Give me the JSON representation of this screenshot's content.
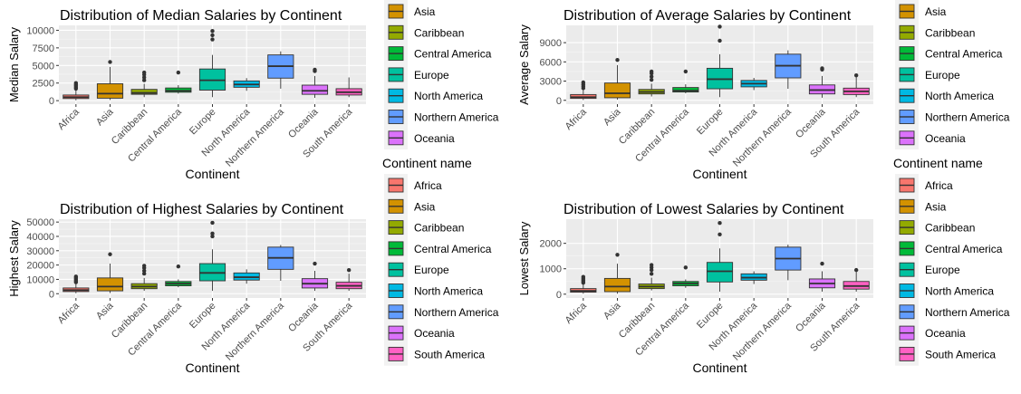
{
  "continents": [
    "Africa",
    "Asia",
    "Caribbean",
    "Central America",
    "Europe",
    "North America",
    "Northern America",
    "Oceania",
    "South America"
  ],
  "colors": {
    "Africa": "#F8766D",
    "Asia": "#D39200",
    "Caribbean": "#93AA00",
    "Central America": "#00BA38",
    "Europe": "#00C19F",
    "North America": "#00B9E3",
    "Northern America": "#619CFF",
    "Oceania": "#DB72FB",
    "South America": "#FF61C3"
  },
  "chart_data": [
    {
      "type": "box",
      "title": "Distribution of Median Salaries by Continent",
      "xlabel": "Continent",
      "ylabel": "Median Salary",
      "ylim": [
        -500,
        10700
      ],
      "yticks": [
        0,
        2500,
        5000,
        7500,
        10000
      ],
      "tick_labels": [
        "0",
        "2500",
        "5000",
        "7500",
        "10000"
      ],
      "legend_title": "",
      "legend_entries": [
        "Asia",
        "Caribbean",
        "Central America",
        "Europe",
        "North America",
        "Northern America",
        "Oceania"
      ],
      "boxes": [
        {
          "category": "Africa",
          "min": 50,
          "q1": 300,
          "median": 500,
          "q3": 800,
          "max": 1500,
          "outliers": [
            1700,
            1900,
            2100,
            2300,
            2500
          ]
        },
        {
          "category": "Asia",
          "min": 100,
          "q1": 350,
          "median": 1000,
          "q3": 2400,
          "max": 4800,
          "outliers": [
            5500
          ]
        },
        {
          "category": "Caribbean",
          "min": 500,
          "q1": 900,
          "median": 1100,
          "q3": 1600,
          "max": 2400,
          "outliers": [
            2900,
            3300,
            3700,
            4000
          ]
        },
        {
          "category": "Central America",
          "min": 1000,
          "q1": 1200,
          "median": 1400,
          "q3": 1800,
          "max": 2200,
          "outliers": [
            4000
          ]
        },
        {
          "category": "Europe",
          "min": 500,
          "q1": 1500,
          "median": 2900,
          "q3": 4500,
          "max": 6500,
          "outliers": [
            8700,
            9300,
            9900
          ]
        },
        {
          "category": "North America",
          "min": 1400,
          "q1": 1900,
          "median": 2300,
          "q3": 2800,
          "max": 3200,
          "outliers": []
        },
        {
          "category": "Northern America",
          "min": 1700,
          "q1": 3200,
          "median": 4900,
          "q3": 6500,
          "max": 7000,
          "outliers": []
        },
        {
          "category": "Oceania",
          "min": 400,
          "q1": 900,
          "median": 1400,
          "q3": 2200,
          "max": 3500,
          "outliers": [
            4200,
            4400
          ]
        },
        {
          "category": "South America",
          "min": 500,
          "q1": 800,
          "median": 1200,
          "q3": 1700,
          "max": 3300,
          "outliers": []
        }
      ]
    },
    {
      "type": "box",
      "title": "Distribution of Average Salaries by Continent",
      "xlabel": "Continent",
      "ylabel": "Average Salary",
      "ylim": [
        -600,
        11700
      ],
      "yticks": [
        0,
        3000,
        6000,
        9000
      ],
      "tick_labels": [
        "0",
        "3000",
        "6000",
        "9000"
      ],
      "legend_title": "",
      "legend_entries": [
        "Asia",
        "Caribbean",
        "Central America",
        "Europe",
        "North America",
        "Northern America",
        "Oceania"
      ],
      "boxes": [
        {
          "category": "Africa",
          "min": 50,
          "q1": 300,
          "median": 500,
          "q3": 900,
          "max": 1600,
          "outliers": [
            1900,
            2200,
            2500,
            2800
          ]
        },
        {
          "category": "Asia",
          "min": 100,
          "q1": 400,
          "median": 1100,
          "q3": 2700,
          "max": 5500,
          "outliers": [
            6300
          ]
        },
        {
          "category": "Caribbean",
          "min": 600,
          "q1": 1000,
          "median": 1300,
          "q3": 1700,
          "max": 2600,
          "outliers": [
            3200,
            3700,
            4200,
            4500
          ]
        },
        {
          "category": "Central America",
          "min": 1100,
          "q1": 1300,
          "median": 1500,
          "q3": 2000,
          "max": 2500,
          "outliers": [
            4500
          ]
        },
        {
          "category": "Europe",
          "min": 500,
          "q1": 1800,
          "median": 3300,
          "q3": 5000,
          "max": 7200,
          "outliers": [
            9300,
            11500
          ]
        },
        {
          "category": "North America",
          "min": 1600,
          "q1": 2100,
          "median": 2600,
          "q3": 3100,
          "max": 3500,
          "outliers": []
        },
        {
          "category": "Northern America",
          "min": 1800,
          "q1": 3500,
          "median": 5400,
          "q3": 7200,
          "max": 7800,
          "outliers": []
        },
        {
          "category": "Oceania",
          "min": 400,
          "q1": 1000,
          "median": 1600,
          "q3": 2400,
          "max": 3800,
          "outliers": [
            4800,
            5000
          ]
        },
        {
          "category": "South America",
          "min": 500,
          "q1": 900,
          "median": 1400,
          "q3": 1900,
          "max": 3700,
          "outliers": [
            3900
          ]
        }
      ]
    },
    {
      "type": "box",
      "title": "Distribution of Highest Salaries by Continent",
      "xlabel": "Continent",
      "ylabel": "Highest Salary",
      "ylim": [
        -3000,
        52000
      ],
      "yticks": [
        0,
        10000,
        20000,
        30000,
        40000,
        50000
      ],
      "tick_labels": [
        "0",
        "10000",
        "20000",
        "30000",
        "40000",
        "50000"
      ],
      "legend_title": "Continent name",
      "legend_entries": [
        "Africa",
        "Asia",
        "Caribbean",
        "Central America",
        "Europe",
        "North America",
        "Northern America",
        "Oceania",
        "South America"
      ],
      "boxes": [
        {
          "category": "Africa",
          "min": 300,
          "q1": 1500,
          "median": 2500,
          "q3": 4000,
          "max": 7000,
          "outliers": [
            8000,
            9000,
            10000,
            11000,
            12000
          ]
        },
        {
          "category": "Asia",
          "min": 500,
          "q1": 2000,
          "median": 5000,
          "q3": 11000,
          "max": 21000,
          "outliers": [
            27500
          ]
        },
        {
          "category": "Caribbean",
          "min": 2000,
          "q1": 3500,
          "median": 5000,
          "q3": 7000,
          "max": 11000,
          "outliers": [
            14000,
            16000,
            18000,
            19500
          ]
        },
        {
          "category": "Central America",
          "min": 4500,
          "q1": 5500,
          "median": 7000,
          "q3": 8500,
          "max": 10000,
          "outliers": [
            19000
          ]
        },
        {
          "category": "Europe",
          "min": 2000,
          "q1": 9000,
          "median": 14500,
          "q3": 21000,
          "max": 31000,
          "outliers": [
            40000,
            42000,
            49500
          ]
        },
        {
          "category": "North America",
          "min": 7000,
          "q1": 9500,
          "median": 11500,
          "q3": 14500,
          "max": 17000,
          "outliers": []
        },
        {
          "category": "Northern America",
          "min": 9000,
          "q1": 17000,
          "median": 25000,
          "q3": 32500,
          "max": 34000,
          "outliers": []
        },
        {
          "category": "Oceania",
          "min": 2000,
          "q1": 4000,
          "median": 7000,
          "q3": 10500,
          "max": 16000,
          "outliers": [
            21000
          ]
        },
        {
          "category": "South America",
          "min": 2000,
          "q1": 3500,
          "median": 5500,
          "q3": 8000,
          "max": 14000,
          "outliers": [
            16500
          ]
        }
      ]
    },
    {
      "type": "box",
      "title": "Distribution of Lowest Salaries by Continent",
      "xlabel": "Continent",
      "ylabel": "Lowest Salary",
      "ylim": [
        -150,
        2950
      ],
      "yticks": [
        0,
        1000,
        2000
      ],
      "tick_labels": [
        "0",
        "1000",
        "2000"
      ],
      "legend_title": "Continent name",
      "legend_entries": [
        "Africa",
        "Asia",
        "Caribbean",
        "Central America",
        "Europe",
        "North America",
        "Northern America",
        "Oceania",
        "South America"
      ],
      "boxes": [
        {
          "category": "Africa",
          "min": 20,
          "q1": 80,
          "median": 130,
          "q3": 220,
          "max": 400,
          "outliers": [
            450,
            500,
            560,
            620,
            680
          ]
        },
        {
          "category": "Asia",
          "min": 20,
          "q1": 100,
          "median": 300,
          "q3": 620,
          "max": 1200,
          "outliers": [
            1550
          ]
        },
        {
          "category": "Caribbean",
          "min": 150,
          "q1": 220,
          "median": 300,
          "q3": 400,
          "max": 650,
          "outliers": [
            800,
            950,
            1050,
            1150
          ]
        },
        {
          "category": "Central America",
          "min": 250,
          "q1": 330,
          "median": 420,
          "q3": 500,
          "max": 580,
          "outliers": [
            1050
          ]
        },
        {
          "category": "Europe",
          "min": 100,
          "q1": 480,
          "median": 900,
          "q3": 1250,
          "max": 1800,
          "outliers": [
            2350,
            2800
          ]
        },
        {
          "category": "North America",
          "min": 400,
          "q1": 550,
          "median": 650,
          "q3": 800,
          "max": 900,
          "outliers": []
        },
        {
          "category": "Northern America",
          "min": 550,
          "q1": 950,
          "median": 1400,
          "q3": 1850,
          "max": 1950,
          "outliers": []
        },
        {
          "category": "Oceania",
          "min": 100,
          "q1": 250,
          "median": 420,
          "q3": 600,
          "max": 900,
          "outliers": [
            1200
          ]
        },
        {
          "category": "South America",
          "min": 100,
          "q1": 200,
          "median": 320,
          "q3": 500,
          "max": 880,
          "outliers": [
            950
          ]
        }
      ]
    }
  ]
}
